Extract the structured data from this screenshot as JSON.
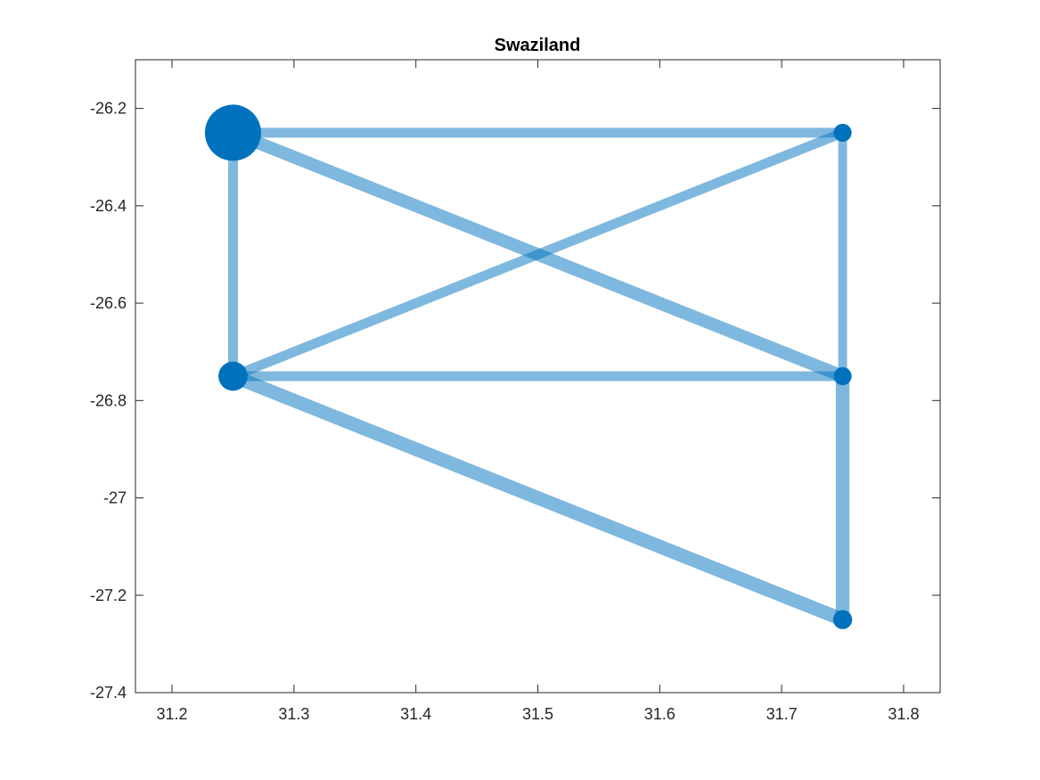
{
  "chart_data": {
    "type": "network-graph",
    "title": "Swaziland",
    "xlabel": "",
    "ylabel": "",
    "xlim": [
      31.17,
      31.83
    ],
    "ylim": [
      -27.4,
      -26.1
    ],
    "xticks": [
      31.2,
      31.3,
      31.4,
      31.5,
      31.6,
      31.7,
      31.8
    ],
    "xtick_labels": [
      "31.2",
      "31.3",
      "31.4",
      "31.5",
      "31.6",
      "31.7",
      "31.8"
    ],
    "yticks": [
      -26.2,
      -26.4,
      -26.6,
      -26.8,
      -27,
      -27.2,
      -27.4
    ],
    "ytick_labels": [
      "-26.2",
      "-26.4",
      "-26.6",
      "-26.8",
      "-27",
      "-27.2",
      "-27.4"
    ],
    "grid": false,
    "box": true,
    "colors": {
      "node": "#0072BD",
      "edge": "#0072BD",
      "edge_opacity": 0.5,
      "axis": "#262626"
    },
    "nodes": [
      {
        "x": 31.25,
        "y": -26.25,
        "size": 5
      },
      {
        "x": 31.25,
        "y": -26.75,
        "size": 2.6
      },
      {
        "x": 31.75,
        "y": -26.25,
        "size": 1.6
      },
      {
        "x": 31.75,
        "y": -26.75,
        "size": 1.6
      },
      {
        "x": 31.75,
        "y": -27.25,
        "size": 1.7
      }
    ],
    "edges": [
      {
        "source": 0,
        "target": 2,
        "weight": 1.0
      },
      {
        "source": 0,
        "target": 3,
        "weight": 1.3
      },
      {
        "source": 0,
        "target": 1,
        "weight": 1.0
      },
      {
        "source": 1,
        "target": 2,
        "weight": 1.0
      },
      {
        "source": 1,
        "target": 3,
        "weight": 1.0
      },
      {
        "source": 1,
        "target": 4,
        "weight": 1.4
      },
      {
        "source": 2,
        "target": 3,
        "weight": 0.9
      },
      {
        "source": 3,
        "target": 4,
        "weight": 1.4
      }
    ]
  }
}
